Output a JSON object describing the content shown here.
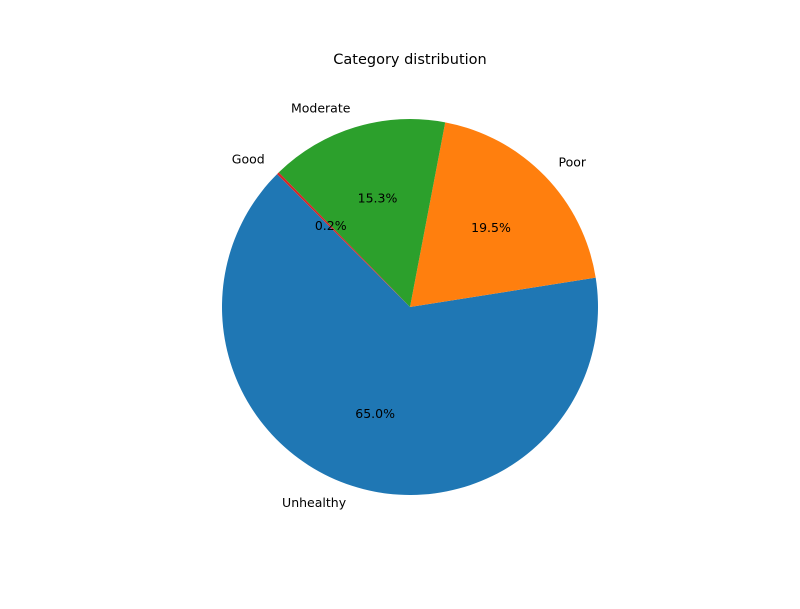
{
  "chart_data": {
    "type": "pie",
    "title": "Category distribution",
    "start_angle": 135,
    "direction": "counterclockwise",
    "slices": [
      {
        "label": "Unhealthy",
        "value": 65.0,
        "pct_label": "65.0%",
        "color": "#1f77b4"
      },
      {
        "label": "Poor",
        "value": 19.5,
        "pct_label": "19.5%",
        "color": "#ff7f0e"
      },
      {
        "label": "Moderate",
        "value": 15.3,
        "pct_label": "15.3%",
        "color": "#2ca02c"
      },
      {
        "label": "Good",
        "value": 0.2,
        "pct_label": "0.2%",
        "color": "#d62728"
      }
    ]
  }
}
